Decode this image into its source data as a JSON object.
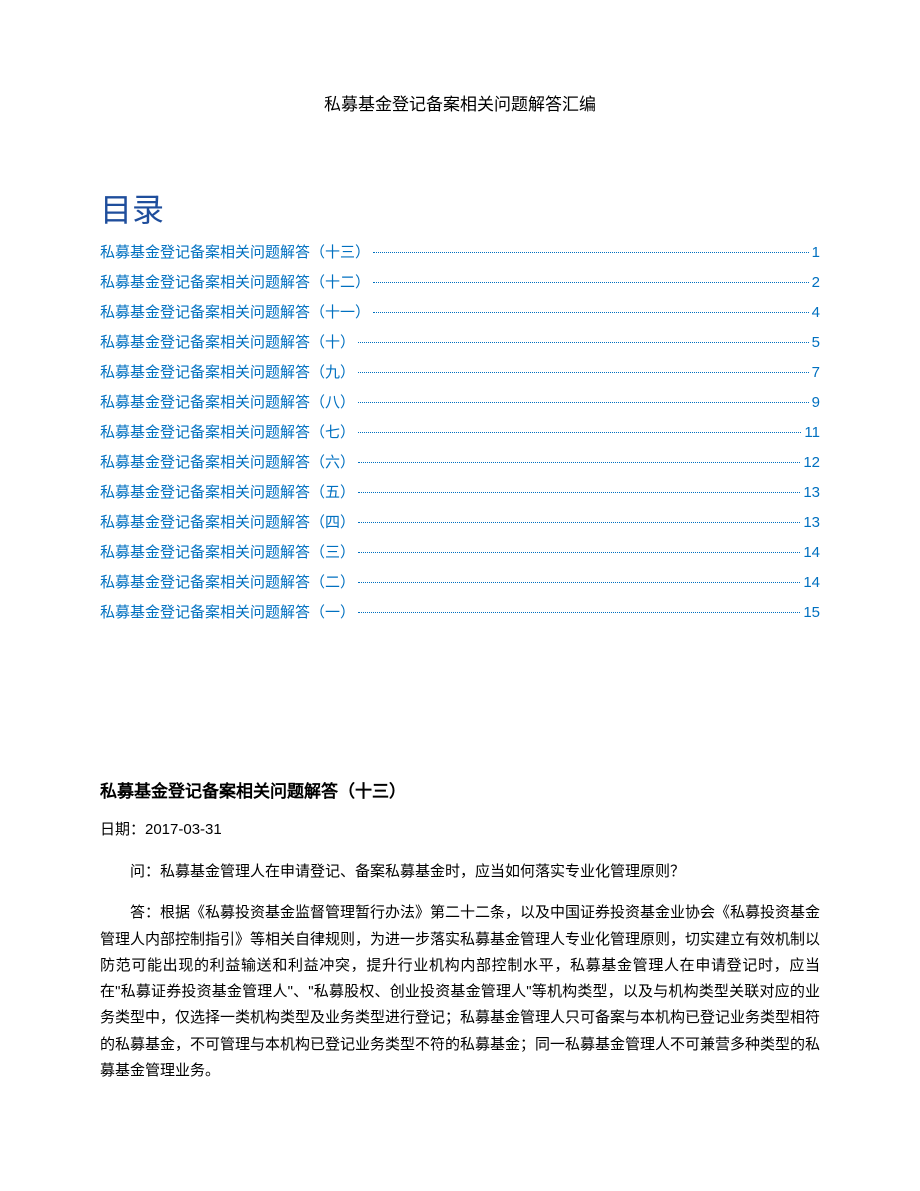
{
  "title": "私募基金登记备案相关问题解答汇编",
  "toc_heading": "目录",
  "toc": [
    {
      "label": "私募基金登记备案相关问题解答（十三）",
      "page": "1"
    },
    {
      "label": "私募基金登记备案相关问题解答（十二）",
      "page": "2"
    },
    {
      "label": "私募基金登记备案相关问题解答（十一）",
      "page": "4"
    },
    {
      "label": "私募基金登记备案相关问题解答（十）",
      "page": "5"
    },
    {
      "label": "私募基金登记备案相关问题解答（九）",
      "page": "7"
    },
    {
      "label": "私募基金登记备案相关问题解答（八）",
      "page": "9"
    },
    {
      "label": "私募基金登记备案相关问题解答（七）",
      "page": "11"
    },
    {
      "label": "私募基金登记备案相关问题解答（六）",
      "page": "12"
    },
    {
      "label": "私募基金登记备案相关问题解答（五）",
      "page": "13"
    },
    {
      "label": "私募基金登记备案相关问题解答（四）",
      "page": "13"
    },
    {
      "label": "私募基金登记备案相关问题解答（三）",
      "page": "14"
    },
    {
      "label": "私募基金登记备案相关问题解答（二）",
      "page": "14"
    },
    {
      "label": "私募基金登记备案相关问题解答（一）",
      "page": "15"
    }
  ],
  "section": {
    "heading": "私募基金登记备案相关问题解答（十三）",
    "date": "日期：2017-03-31",
    "question": "问：私募基金管理人在申请登记、备案私募基金时，应当如何落实专业化管理原则？",
    "answer": "答：根据《私募投资基金监督管理暂行办法》第二十二条，以及中国证券投资基金业协会《私募投资基金管理人内部控制指引》等相关自律规则，为进一步落实私募基金管理人专业化管理原则，切实建立有效机制以防范可能出现的利益输送和利益冲突，提升行业机构内部控制水平，私募基金管理人在申请登记时，应当在\"私募证券投资基金管理人\"、\"私募股权、创业投资基金管理人\"等机构类型，以及与机构类型关联对应的业务类型中，仅选择一类机构类型及业务类型进行登记；私募基金管理人只可备案与本机构已登记业务类型相符的私募基金，不可管理与本机构已登记业务类型不符的私募基金；同一私募基金管理人不可兼营多种类型的私募基金管理业务。"
  }
}
